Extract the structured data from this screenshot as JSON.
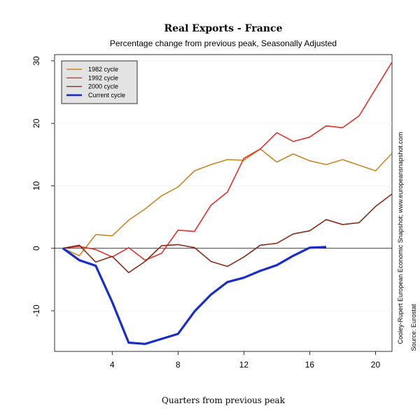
{
  "chart_data": {
    "type": "line",
    "title": "Real Exports - France",
    "subtitle": "Percentage change from previous peak, Seasonally Adjusted",
    "xlabel": "Quarters from previous peak",
    "ylabel": "",
    "xlim": [
      0.5,
      21
    ],
    "ylim": [
      -16.5,
      31
    ],
    "xticks": [
      4,
      8,
      12,
      16,
      20
    ],
    "yticks": [
      -10,
      0,
      10,
      20,
      30
    ],
    "legend_position": "top-left",
    "series": [
      {
        "name": "1982 cycle",
        "color": "#C8862A",
        "x": [
          1,
          2,
          3,
          4,
          5,
          6,
          7,
          8,
          9,
          10,
          11,
          12,
          13,
          14,
          15,
          16,
          17,
          18,
          19,
          20,
          21
        ],
        "y": [
          0,
          -1.2,
          2.2,
          2.0,
          4.5,
          6.3,
          8.4,
          9.8,
          12.4,
          13.4,
          14.2,
          14.1,
          15.9,
          13.8,
          15.1,
          14.0,
          13.4,
          14.2,
          13.3,
          12.4,
          15.2
        ]
      },
      {
        "name": "1992 cycle",
        "color": "#E0302A",
        "x": [
          1,
          2,
          3,
          4,
          5,
          6,
          7,
          8,
          9,
          10,
          11,
          12,
          13,
          14,
          15,
          16,
          17,
          18,
          19,
          20,
          21
        ],
        "y": [
          0,
          0.3,
          -0.2,
          -1.4,
          0.1,
          -1.9,
          -0.8,
          2.9,
          2.7,
          6.9,
          9.0,
          14.4,
          15.9,
          18.5,
          17.1,
          17.8,
          19.6,
          19.3,
          21.2,
          25.5,
          29.8
        ]
      },
      {
        "name": "2000 cycle",
        "color": "#8B2A18",
        "x": [
          1,
          2,
          3,
          4,
          5,
          6,
          7,
          8,
          9,
          10,
          11,
          12,
          13,
          14,
          15,
          16,
          17,
          18,
          19,
          20,
          21
        ],
        "y": [
          0,
          0.5,
          -2.2,
          -1.3,
          -3.9,
          -2.1,
          0.4,
          0.6,
          0.1,
          -2.1,
          -2.9,
          -1.4,
          0.5,
          0.8,
          2.3,
          2.8,
          4.6,
          3.8,
          4.1,
          6.7,
          8.7
        ]
      },
      {
        "name": "Current cycle",
        "color": "#1A2DC8",
        "x": [
          1,
          2,
          3,
          4,
          5,
          6,
          7,
          8,
          9,
          10,
          11,
          12,
          13,
          14,
          15,
          16,
          17
        ],
        "y": [
          0,
          -1.9,
          -2.8,
          -8.6,
          -15.1,
          -15.3,
          -14.5,
          -13.7,
          -10.1,
          -7.4,
          -5.4,
          -4.7,
          -3.6,
          -2.7,
          -1.2,
          0.1,
          0.2
        ]
      }
    ],
    "side_text": {
      "line1": "Cooley-Rupert European Economic Snapshot; www.europeansnapshot.com",
      "line2": "Source: Eurostat"
    }
  }
}
